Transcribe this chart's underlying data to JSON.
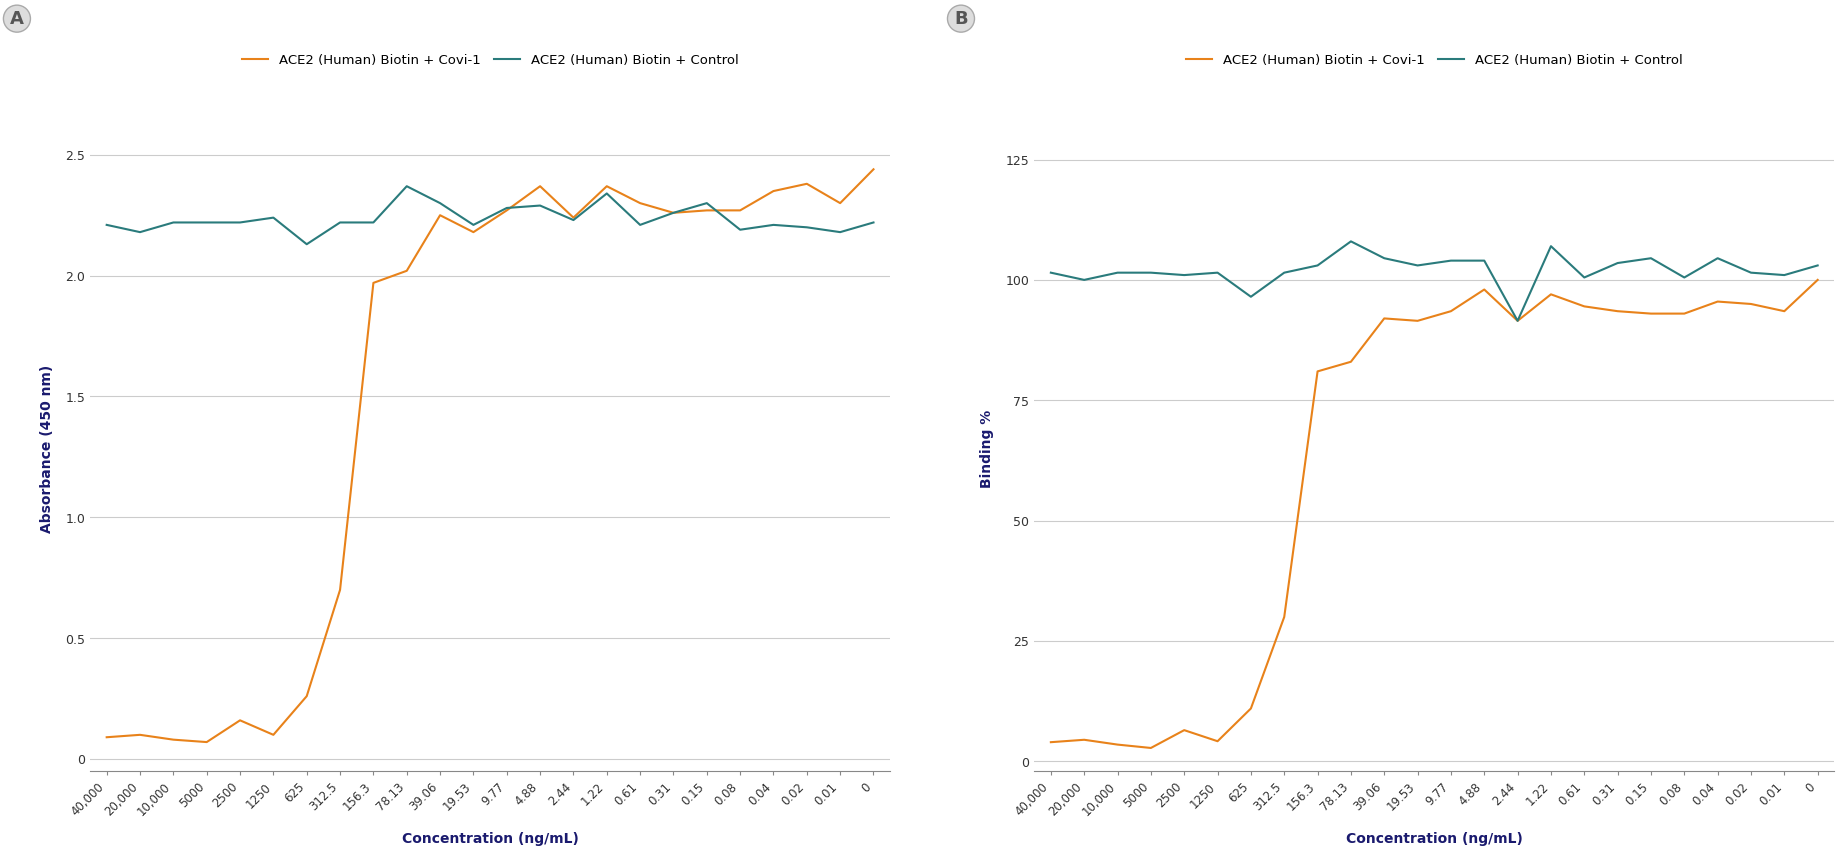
{
  "x_labels": [
    "40,000",
    "20,000",
    "10,000",
    "5000",
    "2500",
    "1250",
    "625",
    "312.5",
    "156.3",
    "78.13",
    "39.06",
    "19.53",
    "9.77",
    "4.88",
    "2.44",
    "1.22",
    "0.61",
    "0.31",
    "0.15",
    "0.08",
    "0.04",
    "0.02",
    "0.01",
    "0"
  ],
  "panel_A": {
    "covi1": [
      0.09,
      0.1,
      0.08,
      0.07,
      0.16,
      0.1,
      0.26,
      0.7,
      1.97,
      2.02,
      2.25,
      2.18,
      2.27,
      2.37,
      2.24,
      2.37,
      2.3,
      2.26,
      2.27,
      2.27,
      2.35,
      2.38,
      2.3,
      2.44
    ],
    "control": [
      2.21,
      2.18,
      2.22,
      2.22,
      2.22,
      2.24,
      2.13,
      2.22,
      2.22,
      2.37,
      2.3,
      2.21,
      2.28,
      2.29,
      2.23,
      2.34,
      2.21,
      2.26,
      2.3,
      2.19,
      2.21,
      2.2,
      2.18,
      2.22
    ],
    "ylabel": "Absorbance (450 nm)",
    "yticks": [
      0,
      0.5,
      1.0,
      1.5,
      2.0,
      2.5
    ],
    "ylim": [
      -0.05,
      2.62
    ]
  },
  "panel_B": {
    "covi1": [
      4.0,
      4.5,
      3.5,
      2.8,
      6.5,
      4.2,
      11.0,
      30.0,
      81.0,
      83.0,
      92.0,
      91.5,
      93.5,
      98.0,
      91.5,
      97.0,
      94.5,
      93.5,
      93.0,
      93.0,
      95.5,
      95.0,
      93.5,
      100.0
    ],
    "control": [
      101.5,
      100.0,
      101.5,
      101.5,
      101.0,
      101.5,
      96.5,
      101.5,
      103.0,
      108.0,
      104.5,
      103.0,
      104.0,
      104.0,
      91.5,
      107.0,
      100.5,
      103.5,
      104.5,
      100.5,
      104.5,
      101.5,
      101.0,
      103.0
    ],
    "ylabel": "Binding %",
    "yticks": [
      0,
      25,
      50,
      75,
      100,
      125
    ],
    "ylim": [
      -2,
      132
    ]
  },
  "xlabel": "Concentration (ng/mL)",
  "legend_covi1_label": "ACE2 (Human) Biotin + Covi-1",
  "legend_control_label": "ACE2 (Human) Biotin + Control",
  "color_covi1": "#E8821A",
  "color_control": "#2A7B7C",
  "line_width": 1.5,
  "background_color": "#FFFFFF",
  "grid_color": "#CCCCCC"
}
